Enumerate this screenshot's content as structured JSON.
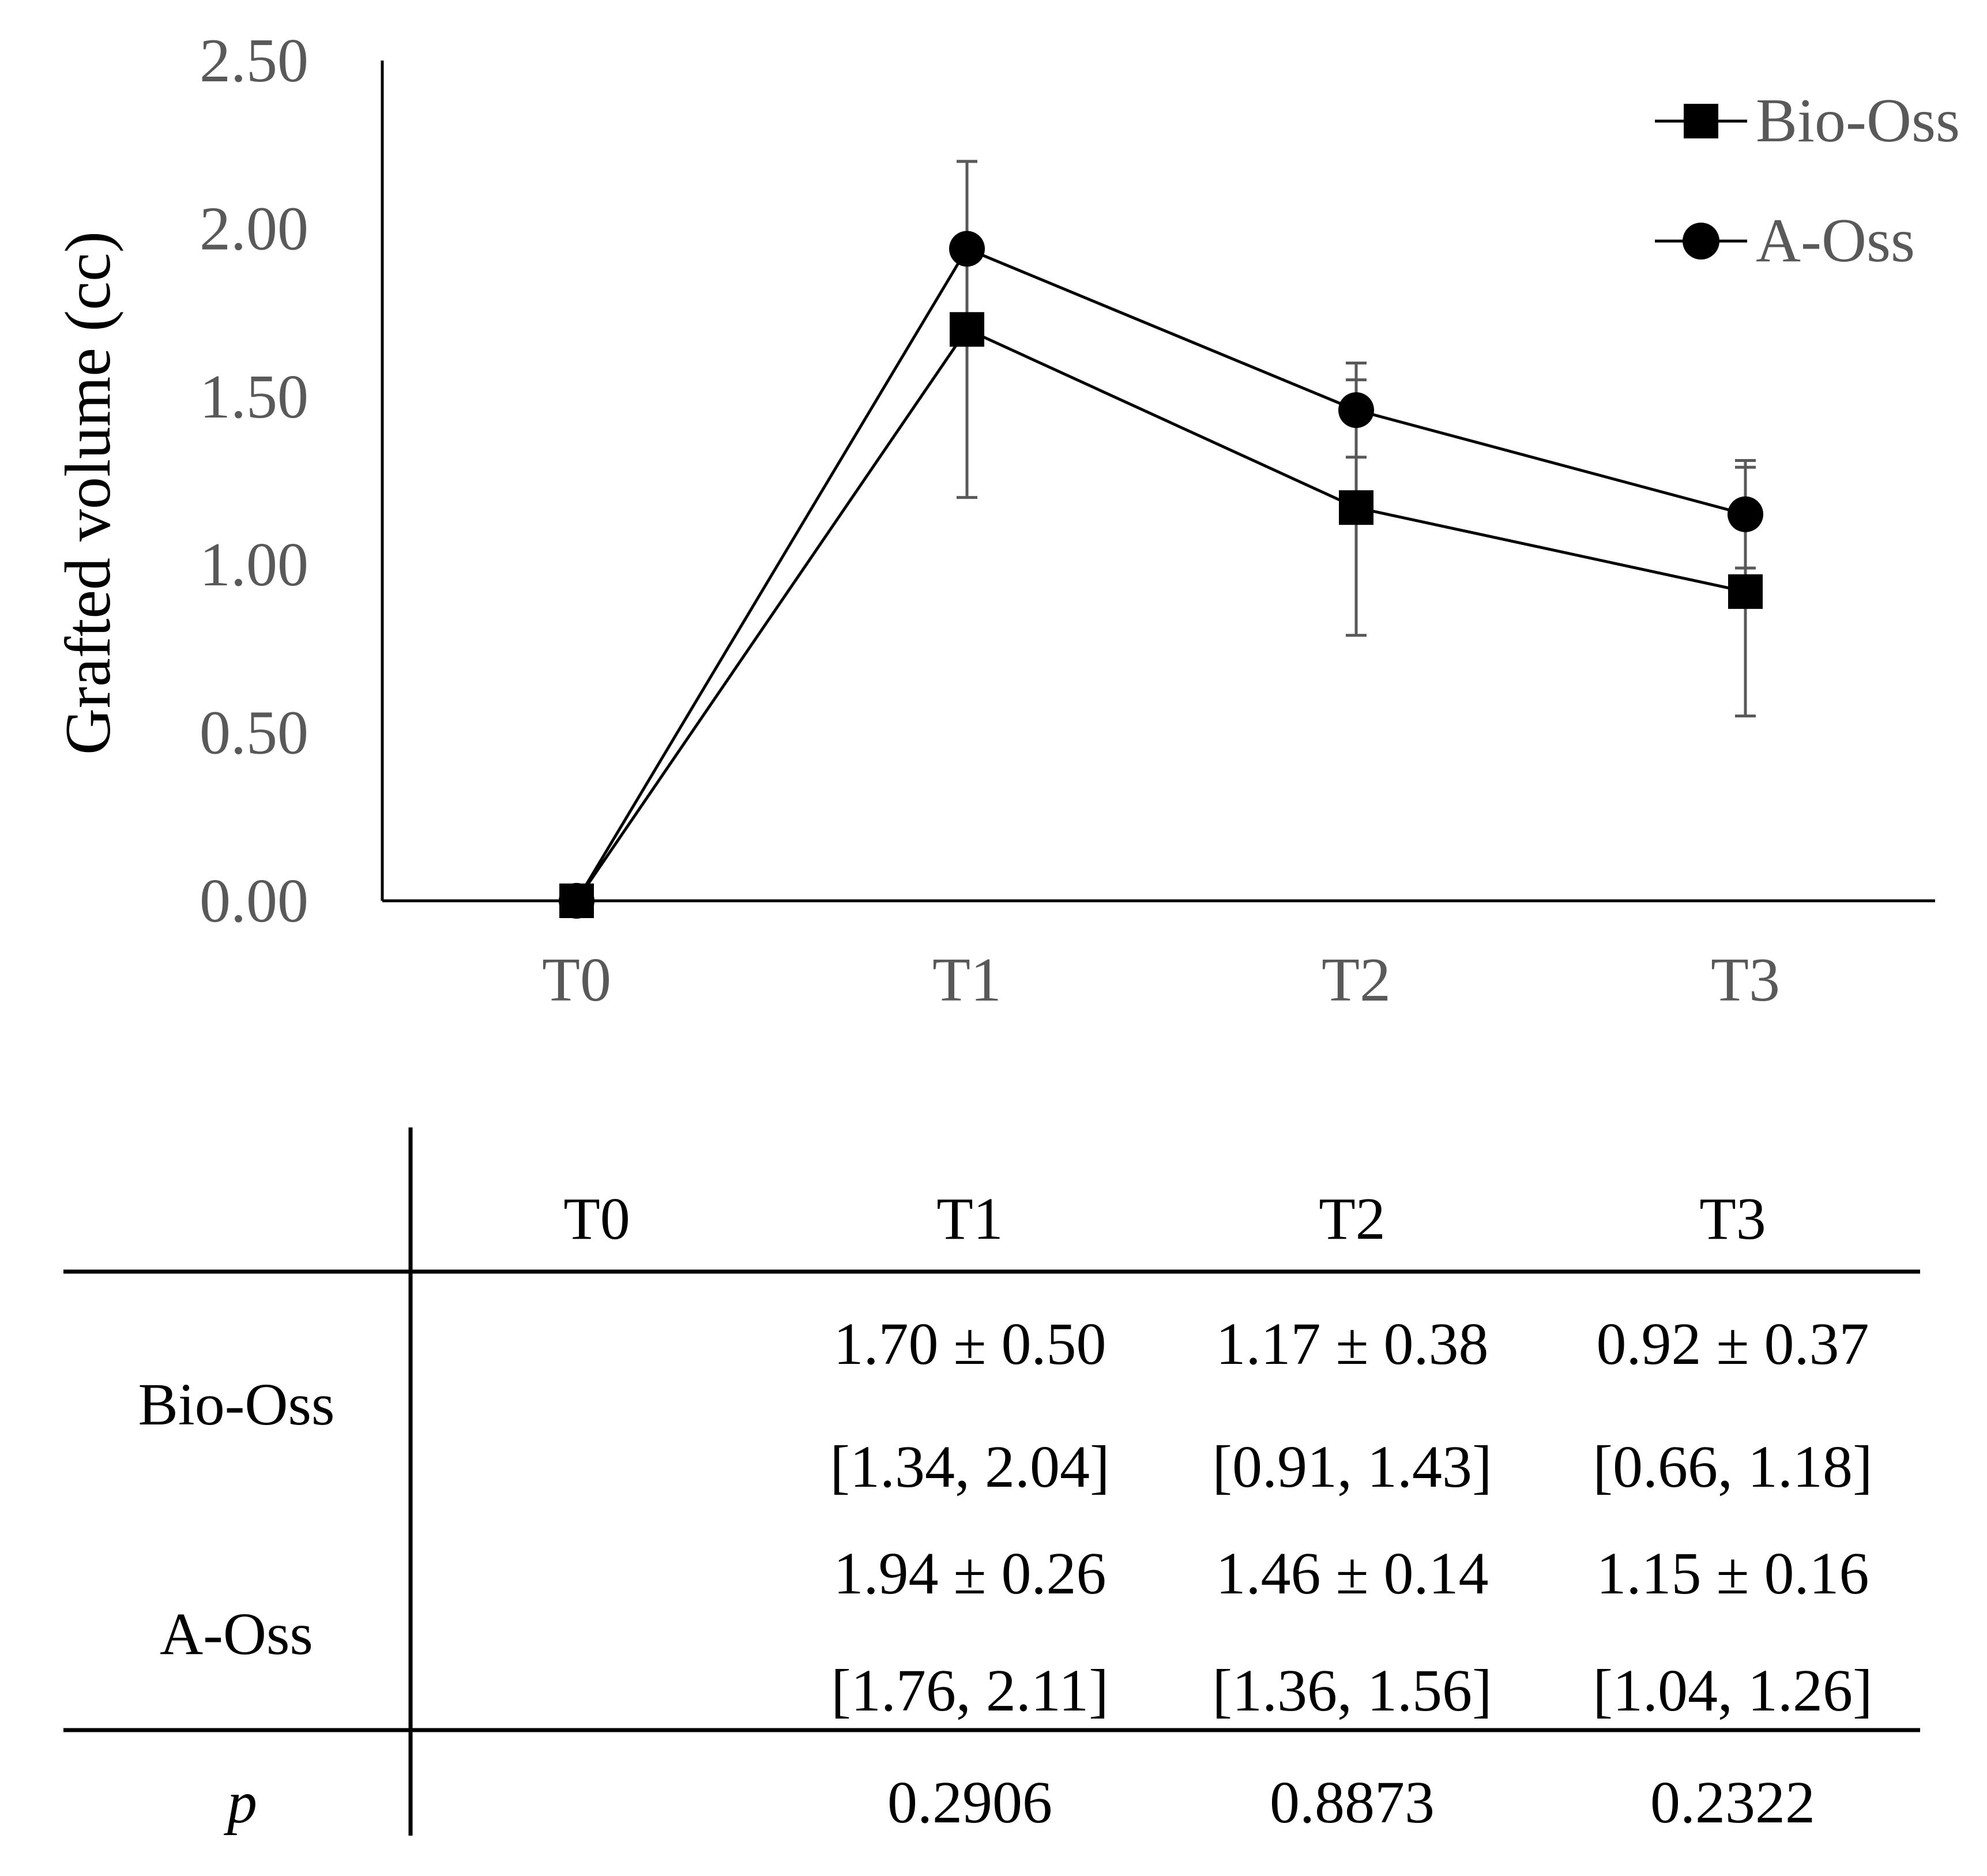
{
  "chart_data": {
    "type": "line",
    "categories": [
      "T0",
      "T1",
      "T2",
      "T3"
    ],
    "ylabel": "Grafted volume (cc)",
    "xlabel": "",
    "ylim": [
      0,
      2.5
    ],
    "yticks": [
      "0.00",
      "0.50",
      "1.00",
      "1.50",
      "2.00",
      "2.50"
    ],
    "ytick_values": [
      0,
      0.5,
      1.0,
      1.5,
      2.0,
      2.5
    ],
    "legend_position": "top-right",
    "series": [
      {
        "name": "Bio-Oss",
        "marker": "square",
        "values": [
          0,
          1.7,
          1.17,
          0.92
        ],
        "errors": [
          0,
          0.5,
          0.38,
          0.37
        ]
      },
      {
        "name": "A-Oss",
        "marker": "circle",
        "values": [
          0,
          1.94,
          1.46,
          1.15
        ],
        "errors": [
          0,
          0.26,
          0.14,
          0.16
        ]
      }
    ]
  },
  "table": {
    "headers": [
      "T0",
      "T1",
      "T2",
      "T3"
    ],
    "rows": [
      {
        "label": "Bio-Oss",
        "mean_sd": [
          "",
          "1.70 ± 0.50",
          "1.17 ± 0.38",
          "0.92 ± 0.37"
        ],
        "ci": [
          "",
          "[1.34, 2.04]",
          "[0.91, 1.43]",
          "[0.66, 1.18]"
        ]
      },
      {
        "label": "A-Oss",
        "mean_sd": [
          "",
          "1.94 ± 0.26",
          "1.46 ± 0.14",
          "1.15 ± 0.16"
        ],
        "ci": [
          "",
          "[1.76, 2.11]",
          "[1.36, 1.56]",
          "[1.04, 1.26]"
        ]
      }
    ],
    "p_label": "p",
    "p_values": [
      "",
      "0.2906",
      "0.8873",
      "0.2322"
    ]
  },
  "colors": {
    "line": "#000000",
    "error_bar": "#595959",
    "axis": "#000000"
  }
}
